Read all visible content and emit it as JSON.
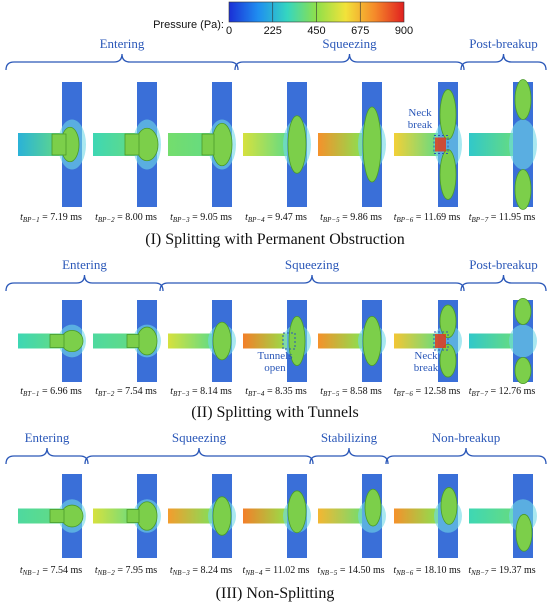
{
  "colorbar": {
    "label": "Pressure (Pa):",
    "ticks": [
      "0",
      "225",
      "450",
      "675",
      "900"
    ],
    "stops": [
      "#1a2fd6",
      "#1f8ef0",
      "#35d6c0",
      "#8fe04a",
      "#f2e23a",
      "#f58a2a",
      "#e02020"
    ]
  },
  "colors": {
    "brace": "#2a57b8",
    "channel_low": "#3a6fd8",
    "droplet": "#7ccf4a",
    "droplet_edge": "#4a9a2a"
  },
  "rows": [
    {
      "title": "(I) Splitting with Permanent Obstruction",
      "phases": [
        {
          "label": "Entering",
          "span": [
            0,
            2
          ]
        },
        {
          "label": "Squeezing",
          "span": [
            3,
            5
          ]
        },
        {
          "label": "Post-breakup",
          "span": [
            6,
            6
          ]
        }
      ],
      "frames": [
        {
          "sub": "BP−1",
          "val": "= 7.19  ms",
          "inlet": 0.25,
          "shape": "enter1"
        },
        {
          "sub": "BP−2",
          "val": "= 8.00  ms",
          "inlet": 0.35,
          "shape": "enter2"
        },
        {
          "sub": "BP−3",
          "val": "= 9.05  ms",
          "inlet": 0.45,
          "shape": "enter3"
        },
        {
          "sub": "BP−4",
          "val": "= 9.47  ms",
          "inlet": 0.62,
          "shape": "squeeze1"
        },
        {
          "sub": "BP−5",
          "val": "= 9.86  ms",
          "inlet": 0.82,
          "shape": "squeeze2"
        },
        {
          "sub": "BP−6",
          "val": "= 11.69  ms",
          "inlet": 0.7,
          "shape": "neck"
        },
        {
          "sub": "BP−7",
          "val": "= 11.95  ms",
          "inlet": 0.3,
          "shape": "split"
        }
      ],
      "annotations": [
        {
          "frame": 5,
          "text": [
            "Neck",
            "break"
          ]
        }
      ]
    },
    {
      "title": "(II) Splitting with Tunnels",
      "phases": [
        {
          "label": "Entering",
          "span": [
            0,
            1
          ]
        },
        {
          "label": "Squeezing",
          "span": [
            2,
            5
          ]
        },
        {
          "label": "Post-breakup",
          "span": [
            6,
            6
          ]
        }
      ],
      "frames": [
        {
          "sub": "BT−1",
          "val": "= 6.96  ms",
          "inlet": 0.35,
          "shape": "enter2"
        },
        {
          "sub": "BT−2",
          "val": "= 7.54  ms",
          "inlet": 0.38,
          "shape": "enter3"
        },
        {
          "sub": "BT−3",
          "val": "= 8.14  ms",
          "inlet": 0.62,
          "shape": "squeeze1"
        },
        {
          "sub": "BT−4",
          "val": "= 8.35  ms",
          "inlet": 0.85,
          "shape": "tunnel"
        },
        {
          "sub": "BT−5",
          "val": "= 8.58  ms",
          "inlet": 0.82,
          "shape": "squeeze2"
        },
        {
          "sub": "BT−6",
          "val": "= 12.58  ms",
          "inlet": 0.72,
          "shape": "neck"
        },
        {
          "sub": "BT−7",
          "val": "= 12.76  ms",
          "inlet": 0.3,
          "shape": "split"
        }
      ],
      "annotations": [
        {
          "frame": 3,
          "text": [
            "Tunnels",
            "open"
          ]
        },
        {
          "frame": 5,
          "text": [
            "Neck",
            "break"
          ]
        }
      ]
    },
    {
      "title": "(III) Non-Splitting",
      "phases": [
        {
          "label": "Entering",
          "span": [
            0,
            0
          ]
        },
        {
          "label": "Squeezing",
          "span": [
            1,
            3
          ]
        },
        {
          "label": "Stabilizing",
          "span": [
            4,
            4
          ]
        },
        {
          "label": "Non-breakup",
          "span": [
            5,
            6
          ]
        }
      ],
      "frames": [
        {
          "sub": "NB−1",
          "val": "= 7.54  ms",
          "inlet": 0.38,
          "shape": "enter2"
        },
        {
          "sub": "NB−2",
          "val": "= 7.95  ms",
          "inlet": 0.62,
          "shape": "enter3"
        },
        {
          "sub": "NB−3",
          "val": "= 8.24  ms",
          "inlet": 0.8,
          "shape": "squeeze1"
        },
        {
          "sub": "NB−4",
          "val": "= 11.02  ms",
          "inlet": 0.85,
          "shape": "nb_up"
        },
        {
          "sub": "NB−5",
          "val": "= 14.50  ms",
          "inlet": 0.75,
          "shape": "nb_up2"
        },
        {
          "sub": "NB−6",
          "val": "= 18.10  ms",
          "inlet": 0.82,
          "shape": "nb_up3"
        },
        {
          "sub": "NB−7",
          "val": "= 19.37  ms",
          "inlet": 0.35,
          "shape": "nb_down"
        }
      ],
      "annotations": []
    }
  ]
}
